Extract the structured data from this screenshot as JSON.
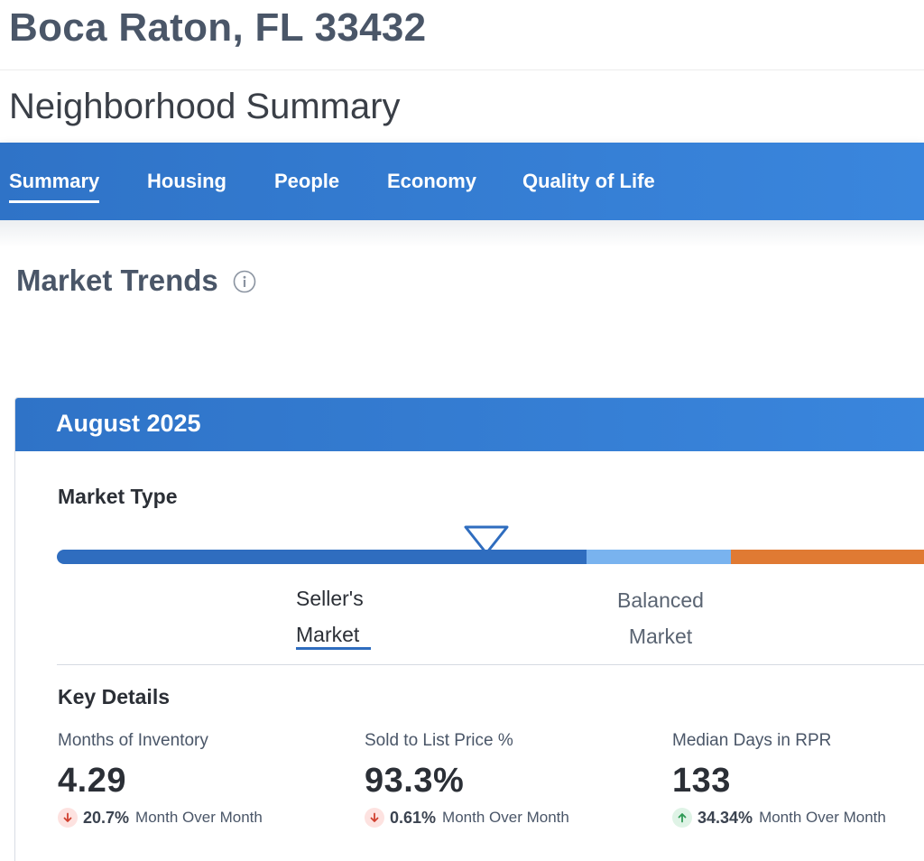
{
  "header": {
    "address": "Boca Raton, FL 33432",
    "subtitle": "Neighborhood Summary"
  },
  "nav": {
    "tabs": [
      "Summary",
      "Housing",
      "People",
      "Economy",
      "Quality of Life"
    ],
    "active": "Summary"
  },
  "market_trends": {
    "title": "Market Trends",
    "info_icon": "info-circle-icon",
    "period": "August 2025",
    "market_type_label": "Market Type",
    "scale": {
      "segments": [
        {
          "name": "seller",
          "color": "#2f6dbf"
        },
        {
          "name": "balanced",
          "color": "#79b3ef"
        },
        {
          "name": "buyer",
          "color": "#e07a33"
        }
      ],
      "marker_icon": "triangle-down-marker-icon",
      "seller_label_line1": "Seller's",
      "seller_label_line2": "Market",
      "balanced_label_line1": "Balanced",
      "balanced_label_line2": "Market"
    },
    "key_details_label": "Key Details",
    "metrics": [
      {
        "label": "Months of Inventory",
        "value": "4.29",
        "direction": "down",
        "change": "20.7%",
        "change_text": "Month Over Month"
      },
      {
        "label": "Sold to List Price %",
        "value": "93.3%",
        "direction": "down",
        "change": "0.61%",
        "change_text": "Month Over Month"
      },
      {
        "label": "Median Days in RPR",
        "value": "133",
        "direction": "up",
        "change": "34.34%",
        "change_text": "Month Over Month"
      }
    ]
  },
  "colors": {
    "brand_blue": "#2f73c7",
    "heading_gray": "#4a5668",
    "down_red": "#d0402f",
    "up_green": "#2f9a55"
  }
}
